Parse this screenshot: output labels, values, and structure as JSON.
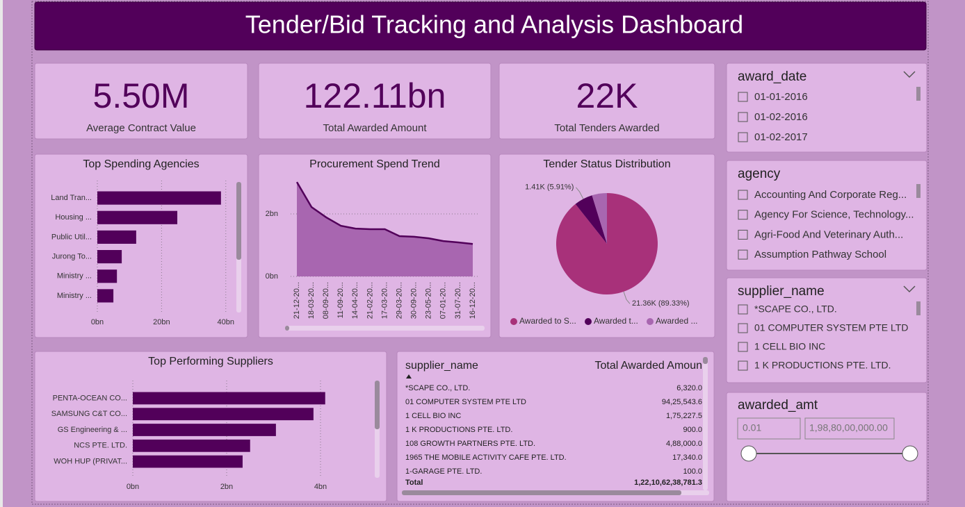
{
  "header": {
    "title": "Tender/Bid Tracking and Analysis Dashboard"
  },
  "kpis": [
    {
      "value": "5.50M",
      "label": "Average Contract Value"
    },
    {
      "value": "122.11bn",
      "label": "Total Awarded Amount"
    },
    {
      "value": "22K",
      "label": "Total Tenders Awarded"
    }
  ],
  "chart_data": [
    {
      "type": "hbar",
      "title": "Top Spending Agencies",
      "categories": [
        "Land Tran...",
        "Housing ...",
        "Public Util...",
        "Jurong To...",
        "Ministry ...",
        "Ministry ..."
      ],
      "values": [
        38.5,
        24.9,
        12.1,
        7.6,
        6.1,
        5.0
      ],
      "color": "#52005a",
      "xlim": [
        0,
        42
      ],
      "xticks": [
        {
          "value": 0,
          "label": "0bn"
        },
        {
          "value": 20,
          "label": "20bn"
        },
        {
          "value": 40,
          "label": "40bn"
        }
      ],
      "grid": true
    },
    {
      "type": "area",
      "title": "Procurement Spend Trend",
      "categories": [
        "21-12-20...",
        "18-03-20...",
        "08-09-20...",
        "11-09-20...",
        "14-04-20...",
        "21-02-20...",
        "17-03-20...",
        "29-03-20...",
        "30-09-20...",
        "23-05-20...",
        "07-01-20...",
        "31-07-20...",
        "16-12-20..."
      ],
      "values": [
        3.02,
        2.22,
        1.89,
        1.62,
        1.53,
        1.51,
        1.51,
        1.29,
        1.27,
        1.22,
        1.13,
        1.09,
        1.04
      ],
      "color": "#52005a",
      "fill": "#a866b0",
      "ylim": [
        0,
        3.2
      ],
      "yticks": [
        {
          "value": 0,
          "label": "0bn"
        },
        {
          "value": 2,
          "label": "2bn"
        }
      ],
      "grid": true
    },
    {
      "type": "pie",
      "title": "Tender Status Distribution",
      "categories": [
        "Awarded to S...",
        "Awarded t...",
        "Awarded ..."
      ],
      "values": [
        89.33,
        5.91,
        4.76
      ],
      "value_labels": [
        "21.36K (89.33%)",
        "1.41K (5.91%)",
        null
      ],
      "colors": [
        "#a8317a",
        "#52005a",
        "#a866b0"
      ]
    },
    {
      "type": "hbar",
      "title": "Top Performing Suppliers",
      "categories": [
        "PENTA-OCEAN CO...",
        "SAMSUNG C&T CO...",
        "GS Engineering & ...",
        "NCS PTE. LTD.",
        "WOH HUP (PRIVAT..."
      ],
      "values": [
        4.1,
        3.85,
        3.05,
        2.5,
        2.34
      ],
      "color": "#52005a",
      "xlim": [
        0,
        4.4
      ],
      "xticks": [
        {
          "value": 0,
          "label": "0bn"
        },
        {
          "value": 2,
          "label": "2bn"
        },
        {
          "value": 4,
          "label": "4bn"
        }
      ],
      "grid": true
    }
  ],
  "table": {
    "columns": [
      "supplier_name",
      "Total Awarded Amoun"
    ],
    "rows": [
      [
        "*SCAPE CO., LTD.",
        "6,320.0"
      ],
      [
        "01 COMPUTER SYSTEM PTE LTD",
        "94,25,543.6"
      ],
      [
        "1 CELL BIO INC",
        "1,75,227.5"
      ],
      [
        "1 K PRODUCTIONS PTE. LTD.",
        "900.0"
      ],
      [
        "108 GROWTH PARTNERS PTE. LTD.",
        "4,88,000.0"
      ],
      [
        "1965 THE MOBILE ACTIVITY CAFE PTE. LTD.",
        "17,340.0"
      ],
      [
        "1-GARAGE PTE. LTD.",
        "100.0"
      ]
    ],
    "total": [
      "Total",
      "1,22,10,62,38,781.3"
    ]
  },
  "slicers": [
    {
      "title": "award_date",
      "items": [
        "01-01-2016",
        "01-02-2016",
        "01-02-2017"
      ]
    },
    {
      "title": "agency",
      "items": [
        "Accounting And Corporate Reg...",
        "Agency For Science, Technology...",
        "Agri-Food And Veterinary Auth...",
        "Assumption Pathway School"
      ]
    },
    {
      "title": "supplier_name",
      "items": [
        "*SCAPE CO., LTD.",
        "01 COMPUTER SYSTEM PTE LTD",
        "1 CELL BIO INC",
        "1 K PRODUCTIONS PTE. LTD."
      ]
    },
    {
      "title": "awarded_amt",
      "range": [
        "0.01",
        "1,98,80,00,000.00"
      ]
    }
  ]
}
